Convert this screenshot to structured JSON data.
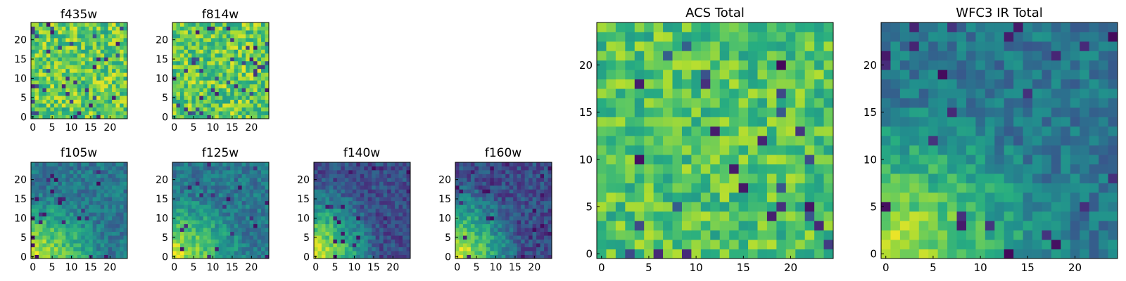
{
  "chart_data": [
    {
      "type": "heatmap",
      "title": "f435w",
      "grid_size": 25,
      "colormap": "viridis",
      "x_ticks": [
        "0",
        "5",
        "10",
        "15",
        "20"
      ],
      "y_ticks": [
        "0",
        "5",
        "10",
        "15",
        "20"
      ],
      "texture": "uniform-high-noise",
      "seed": 11
    },
    {
      "type": "heatmap",
      "title": "f814w",
      "grid_size": 25,
      "colormap": "viridis",
      "x_ticks": [
        "0",
        "5",
        "10",
        "15",
        "20"
      ],
      "y_ticks": [
        "0",
        "5",
        "10",
        "15",
        "20"
      ],
      "texture": "uniform-high-noise",
      "seed": 23
    },
    {
      "type": "heatmap",
      "title": "f105w",
      "grid_size": 25,
      "colormap": "viridis",
      "x_ticks": [
        "0",
        "5",
        "10",
        "15",
        "20"
      ],
      "y_ticks": [
        "0",
        "5",
        "10",
        "15",
        "20"
      ],
      "texture": "bright-lower-left",
      "seed": 37
    },
    {
      "type": "heatmap",
      "title": "f125w",
      "grid_size": 25,
      "colormap": "viridis",
      "x_ticks": [
        "0",
        "5",
        "10",
        "15",
        "20"
      ],
      "y_ticks": [
        "0",
        "5",
        "10",
        "15",
        "20"
      ],
      "texture": "bright-lower-left",
      "seed": 41
    },
    {
      "type": "heatmap",
      "title": "f140w",
      "grid_size": 25,
      "colormap": "viridis",
      "x_ticks": [
        "0",
        "5",
        "10",
        "15",
        "20"
      ],
      "y_ticks": [
        "0",
        "5",
        "10",
        "15",
        "20"
      ],
      "texture": "bright-lower-left-strong",
      "seed": 53
    },
    {
      "type": "heatmap",
      "title": "f160w",
      "grid_size": 25,
      "colormap": "viridis",
      "x_ticks": [
        "0",
        "5",
        "10",
        "15",
        "20"
      ],
      "y_ticks": [
        "0",
        "5",
        "10",
        "15",
        "20"
      ],
      "texture": "bright-lower-left-strong",
      "seed": 67
    },
    {
      "type": "heatmap",
      "title": "ACS Total",
      "grid_size": 25,
      "colormap": "viridis",
      "x_ticks": [
        "0",
        "5",
        "10",
        "15",
        "20"
      ],
      "y_ticks": [
        "0",
        "5",
        "10",
        "15",
        "20"
      ],
      "texture": "uniform-high",
      "seed": 79
    },
    {
      "type": "heatmap",
      "title": "WFC3 IR Total",
      "grid_size": 25,
      "colormap": "viridis",
      "x_ticks": [
        "0",
        "5",
        "10",
        "15",
        "20"
      ],
      "y_ticks": [
        "0",
        "5",
        "10",
        "15",
        "20"
      ],
      "texture": "bright-lower-left",
      "seed": 97
    }
  ]
}
